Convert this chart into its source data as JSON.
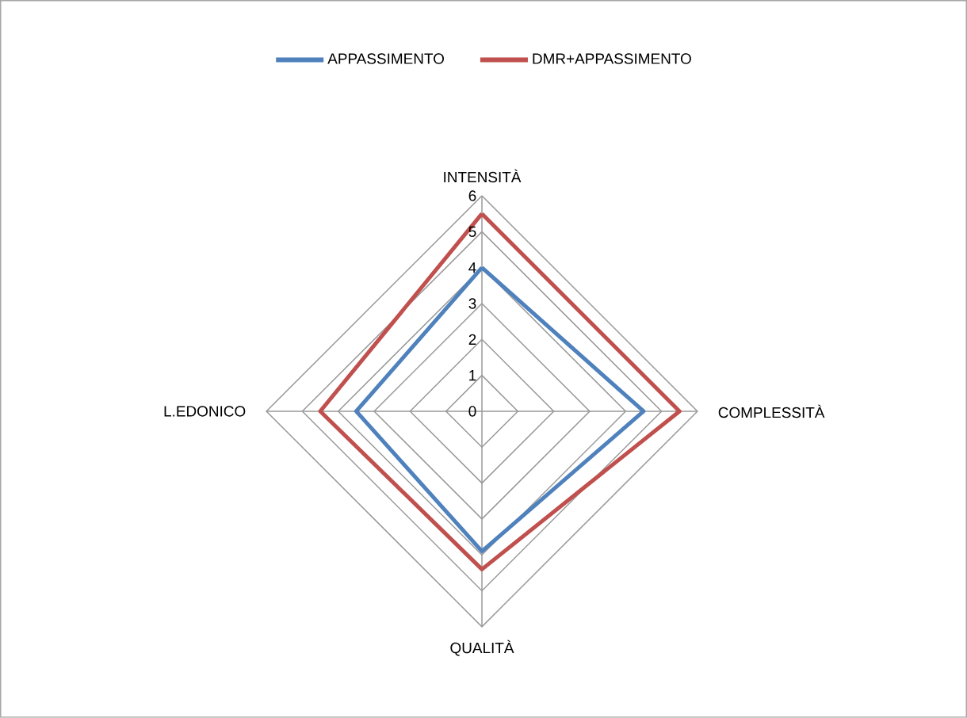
{
  "chart_data": {
    "type": "radar",
    "categories": [
      "INTENSITÀ",
      "COMPLESSITÀ",
      "QUALITÀ",
      "L.EDONICO"
    ],
    "series": [
      {
        "name": "APPASSIMENTO",
        "color": "#4f81bd",
        "values": [
          4,
          4.5,
          3.9,
          3.5
        ]
      },
      {
        "name": "DMR+APPASSIMENTO",
        "color": "#c0504d",
        "values": [
          5.5,
          5.5,
          4.4,
          4.5
        ]
      }
    ],
    "ylim": [
      0,
      6
    ],
    "yticks": [
      0,
      1,
      2,
      3,
      4,
      5,
      6
    ],
    "grid": true,
    "legend": "top"
  }
}
